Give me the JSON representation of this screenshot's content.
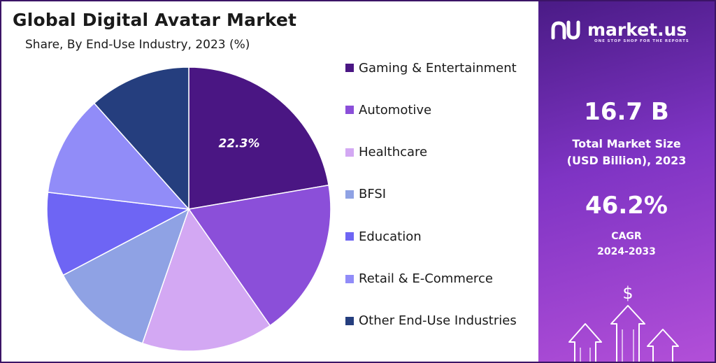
{
  "chart_data": {
    "type": "pie",
    "title": "Global Digital Avatar Market",
    "subtitle": "Share, By End-Use Industry, 2023 (%)",
    "unit": "%",
    "categories": [
      "Gaming & Entertainment",
      "Automotive",
      "Healthcare",
      "BFSI",
      "Education",
      "Retail & E-Commerce",
      "Other End-Use Industries"
    ],
    "values": [
      22.3,
      18.0,
      15.0,
      12.0,
      9.6,
      11.5,
      11.6
    ],
    "data_labels": [
      "22.3%",
      null,
      null,
      null,
      null,
      null,
      null
    ],
    "colors": [
      "#4a1683",
      "#8b4fd9",
      "#d3a8f3",
      "#8fa2e4",
      "#6e65f4",
      "#918cf8",
      "#253e7e"
    ],
    "start": "12 o'clock, clockwise",
    "legend_position": "right"
  },
  "brand": {
    "name": "market.us",
    "tagline": "ONE STOP SHOP FOR THE REPORTS"
  },
  "stats": {
    "market_size_value": "16.7 B",
    "market_size_label_line1": "Total Market Size",
    "market_size_label_line2": "(USD Billion), 2023",
    "cagr_value": "46.2%",
    "cagr_label": "CAGR",
    "cagr_period": "2024-2033"
  },
  "decor": {
    "currency_symbol": "$"
  }
}
